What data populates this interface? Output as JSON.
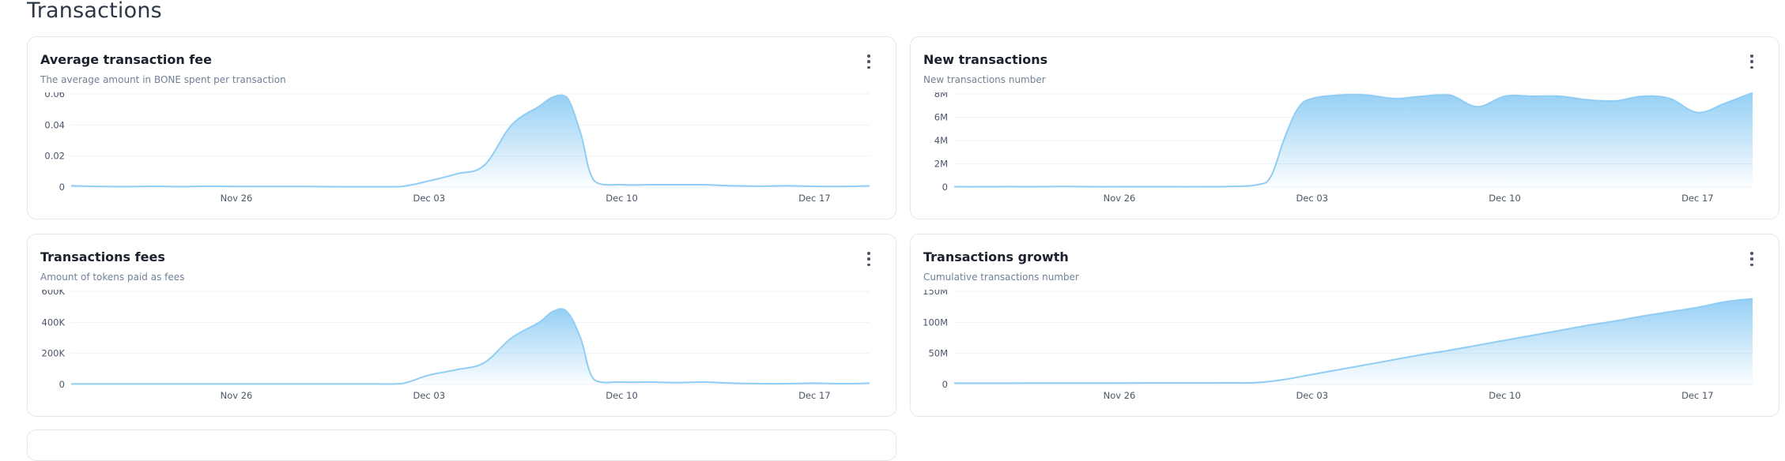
{
  "page": {
    "title": "Transactions"
  },
  "icons": {
    "menu": "kebab-menu-icon"
  },
  "colors": {
    "line": "#90cdf4",
    "fill_top": "#90cdf4",
    "grid": "#edf2f7",
    "axis_text": "#4a5568"
  },
  "chart_data": [
    {
      "id": "avg-fee",
      "type": "area",
      "title": "Average transaction fee",
      "subtitle": "The average amount in BONE spent per transaction",
      "x_ticks": [
        "Nov 26",
        "Dec 03",
        "Dec 10",
        "Dec 17"
      ],
      "x_tick_pos": [
        6,
        13,
        20,
        27
      ],
      "x_range": [
        0,
        29
      ],
      "y_ticks": [
        "0",
        "0.02",
        "0.04",
        "0.06"
      ],
      "y_range": [
        0,
        0.06
      ],
      "x": [
        0,
        1,
        2,
        3,
        4,
        5,
        6,
        7,
        8,
        9,
        10,
        11,
        12,
        13,
        14,
        15,
        16,
        17,
        17.5,
        18,
        18.5,
        19,
        20,
        21,
        22,
        23,
        24,
        25,
        26,
        27,
        28,
        29
      ],
      "y": [
        0.0008,
        0.0004,
        0.0003,
        0.0005,
        0.0003,
        0.0006,
        0.0004,
        0.0004,
        0.0004,
        0.0003,
        0.0002,
        0.0002,
        0.0004,
        0.004,
        0.0085,
        0.014,
        0.04,
        0.052,
        0.058,
        0.058,
        0.035,
        0.004,
        0.0015,
        0.0015,
        0.0015,
        0.0015,
        0.0008,
        0.0006,
        0.0008,
        0.0005,
        0.0004,
        0.0008
      ]
    },
    {
      "id": "new-tx",
      "type": "area",
      "title": "New transactions",
      "subtitle": "New transactions number",
      "x_ticks": [
        "Nov 26",
        "Dec 03",
        "Dec 10",
        "Dec 17"
      ],
      "x_tick_pos": [
        6,
        13,
        20,
        27
      ],
      "x_range": [
        0,
        29
      ],
      "y_ticks": [
        "0",
        "2M",
        "4M",
        "6M",
        "8M"
      ],
      "y_range": [
        0,
        8000000
      ],
      "x": [
        0,
        1,
        2,
        3,
        4,
        5,
        6,
        7,
        8,
        9,
        10,
        11,
        11.5,
        12,
        12.5,
        13,
        14,
        15,
        16,
        17,
        18,
        19,
        20,
        21,
        22,
        23,
        24,
        25,
        26,
        27,
        28,
        29
      ],
      "y": [
        30000,
        30000,
        40000,
        30000,
        50000,
        30000,
        30000,
        30000,
        30000,
        30000,
        50000,
        200000,
        900000,
        4200000,
        6800000,
        7600000,
        7900000,
        7900000,
        7600000,
        7800000,
        7900000,
        6900000,
        7800000,
        7800000,
        7800000,
        7500000,
        7400000,
        7800000,
        7600000,
        6400000,
        7200000,
        8100000
      ]
    },
    {
      "id": "tx-fees",
      "type": "area",
      "title": "Transactions fees",
      "subtitle": "Amount of tokens paid as fees",
      "x_ticks": [
        "Nov 26",
        "Dec 03",
        "Dec 10",
        "Dec 17"
      ],
      "x_tick_pos": [
        6,
        13,
        20,
        27
      ],
      "x_range": [
        0,
        29
      ],
      "y_ticks": [
        "0",
        "200K",
        "400K",
        "600K"
      ],
      "y_range": [
        0,
        600000
      ],
      "x": [
        0,
        1,
        2,
        3,
        4,
        5,
        6,
        7,
        8,
        9,
        10,
        11,
        12,
        13,
        14,
        15,
        16,
        17,
        17.5,
        18,
        18.5,
        19,
        20,
        21,
        22,
        23,
        24,
        25,
        26,
        27,
        28,
        29
      ],
      "y": [
        3000,
        3000,
        3000,
        3000,
        3000,
        3000,
        3000,
        3000,
        3000,
        3000,
        3000,
        3000,
        5000,
        60000,
        95000,
        140000,
        300000,
        400000,
        470000,
        470000,
        300000,
        30000,
        15000,
        15000,
        12000,
        15000,
        8000,
        5000,
        5000,
        8000,
        5000,
        8000
      ]
    },
    {
      "id": "tx-growth",
      "type": "area",
      "title": "Transactions growth",
      "subtitle": "Cumulative transactions number",
      "x_ticks": [
        "Nov 26",
        "Dec 03",
        "Dec 10",
        "Dec 17"
      ],
      "x_tick_pos": [
        6,
        13,
        20,
        27
      ],
      "x_range": [
        0,
        29
      ],
      "y_ticks": [
        "0",
        "50M",
        "100M",
        "150M"
      ],
      "y_range": [
        0,
        150000000
      ],
      "x": [
        0,
        2,
        4,
        6,
        8,
        10,
        11,
        12,
        13,
        14,
        15,
        16,
        17,
        18,
        19,
        20,
        21,
        22,
        23,
        24,
        25,
        26,
        27,
        28,
        29
      ],
      "y": [
        2000000,
        2100000,
        2200000,
        2300000,
        2400000,
        2500000,
        3000000,
        8000000,
        16000000,
        24000000,
        32000000,
        40000000,
        48000000,
        55000000,
        63000000,
        71000000,
        79000000,
        87000000,
        95000000,
        102000000,
        110000000,
        117000000,
        124000000,
        133000000,
        138000000
      ]
    }
  ]
}
